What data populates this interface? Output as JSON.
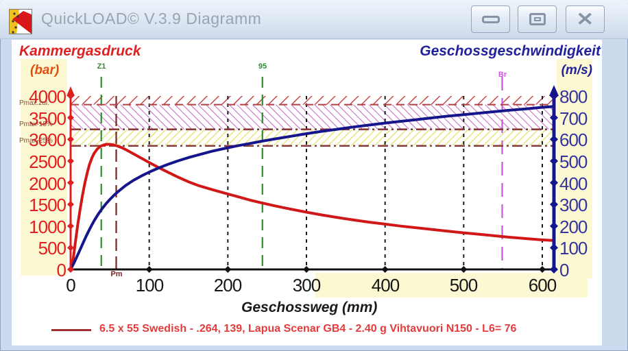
{
  "window": {
    "title": "QuickLOAD© V.3.9 Diagramm",
    "controls": {
      "minimize": "minimize",
      "restore": "restore",
      "close": "close"
    }
  },
  "chart_data": {
    "type": "line",
    "title_left": "Kammergasdruck",
    "unit_left": "(bar)",
    "title_right": "Geschossgeschwindigkeit",
    "unit_right": "(m/s)",
    "xlabel": "Geschossweg (mm)",
    "x_ticks": [
      0,
      100,
      200,
      300,
      400,
      500,
      600
    ],
    "x_range_mm": [
      0,
      615
    ],
    "left_axis": {
      "label": "Kammergasdruck (bar)",
      "ticks": [
        0,
        500,
        1000,
        1500,
        2000,
        2500,
        3000,
        3500,
        4000
      ],
      "range": [
        0,
        4000
      ],
      "color": "#e02020"
    },
    "right_axis": {
      "label": "Geschossgeschwindigkeit (m/s)",
      "ticks": [
        0,
        100,
        200,
        300,
        400,
        500,
        600,
        700,
        800
      ],
      "range": [
        0,
        800
      ],
      "color": "#22229a"
    },
    "grid": "vertical-dashed",
    "pressure_limits": [
      {
        "label": "Pmax.zul.",
        "value": 3800,
        "zone_color": "#c565c5",
        "zone_hatch": "backslash-magenta-above-is-red"
      },
      {
        "label": "Pmax-15%",
        "value": 3230,
        "zone_color": "#e6e670",
        "line_style": "dash-dot-brown"
      },
      {
        "label": "Pmax-25%",
        "value": 2850,
        "line_style": "dash-dot-brown"
      }
    ],
    "markers": [
      {
        "label": "Z1",
        "x_mm": 39,
        "color": "#2e8b2e",
        "position": "top"
      },
      {
        "label": "95",
        "x_mm": 244,
        "color": "#2e8b2e",
        "position": "top"
      },
      {
        "label": "Br",
        "x_mm": 549,
        "color": "#cc55dd",
        "position": "top"
      },
      {
        "label": "Pm",
        "x_mm": 58,
        "color": "#7b2424",
        "position": "bottom"
      }
    ],
    "series": [
      {
        "name": "Kammergasdruck",
        "axis": "left",
        "color": "#d01818",
        "points": [
          [
            0,
            0
          ],
          [
            3,
            200
          ],
          [
            6,
            620
          ],
          [
            9,
            1020
          ],
          [
            12,
            1380
          ],
          [
            15,
            1700
          ],
          [
            18,
            1980
          ],
          [
            21,
            2220
          ],
          [
            24,
            2420
          ],
          [
            27,
            2570
          ],
          [
            30,
            2680
          ],
          [
            34,
            2780
          ],
          [
            38,
            2840
          ],
          [
            42,
            2870
          ],
          [
            46,
            2885
          ],
          [
            50,
            2885
          ],
          [
            55,
            2870
          ],
          [
            60,
            2845
          ],
          [
            66,
            2800
          ],
          [
            72,
            2745
          ],
          [
            80,
            2665
          ],
          [
            90,
            2565
          ],
          [
            100,
            2465
          ],
          [
            112,
            2350
          ],
          [
            124,
            2240
          ],
          [
            136,
            2135
          ],
          [
            150,
            2020
          ],
          [
            164,
            1925
          ],
          [
            180,
            1840
          ],
          [
            196,
            1760
          ],
          [
            212,
            1680
          ],
          [
            228,
            1600
          ],
          [
            244,
            1530
          ],
          [
            260,
            1465
          ],
          [
            280,
            1390
          ],
          [
            300,
            1320
          ],
          [
            320,
            1255
          ],
          [
            340,
            1195
          ],
          [
            360,
            1140
          ],
          [
            380,
            1090
          ],
          [
            400,
            1045
          ],
          [
            420,
            1000
          ],
          [
            440,
            960
          ],
          [
            460,
            920
          ],
          [
            480,
            880
          ],
          [
            500,
            845
          ],
          [
            520,
            810
          ],
          [
            540,
            775
          ],
          [
            560,
            740
          ],
          [
            580,
            710
          ],
          [
            598,
            685
          ],
          [
            615,
            665
          ]
        ]
      },
      {
        "name": "Geschossgeschwindigkeit",
        "axis": "right",
        "color": "#16168c",
        "points": [
          [
            0,
            0
          ],
          [
            5,
            35
          ],
          [
            10,
            75
          ],
          [
            15,
            115
          ],
          [
            20,
            155
          ],
          [
            25,
            192
          ],
          [
            30,
            225
          ],
          [
            35,
            254
          ],
          [
            40,
            280
          ],
          [
            45,
            303
          ],
          [
            50,
            323
          ],
          [
            56,
            345
          ],
          [
            62,
            364
          ],
          [
            70,
            387
          ],
          [
            80,
            411
          ],
          [
            90,
            431
          ],
          [
            100,
            449
          ],
          [
            112,
            468
          ],
          [
            124,
            485
          ],
          [
            136,
            500
          ],
          [
            150,
            516
          ],
          [
            164,
            530
          ],
          [
            180,
            545
          ],
          [
            196,
            558
          ],
          [
            212,
            570
          ],
          [
            228,
            581
          ],
          [
            244,
            592
          ],
          [
            260,
            602
          ],
          [
            280,
            614
          ],
          [
            300,
            626
          ],
          [
            320,
            637
          ],
          [
            340,
            647
          ],
          [
            360,
            657
          ],
          [
            380,
            666
          ],
          [
            400,
            675
          ],
          [
            420,
            683
          ],
          [
            440,
            691
          ],
          [
            460,
            699
          ],
          [
            480,
            707
          ],
          [
            500,
            714
          ],
          [
            520,
            721
          ],
          [
            540,
            728
          ],
          [
            560,
            735
          ],
          [
            580,
            741
          ],
          [
            598,
            747
          ],
          [
            615,
            752
          ]
        ]
      }
    ],
    "legend": {
      "swatch_color": "#a03030",
      "text": "6.5 x 55 Swedish - .264, 139, Lapua Scenar GB4 - 2.40 g Vihtavuori N150 - L6= 76"
    }
  }
}
